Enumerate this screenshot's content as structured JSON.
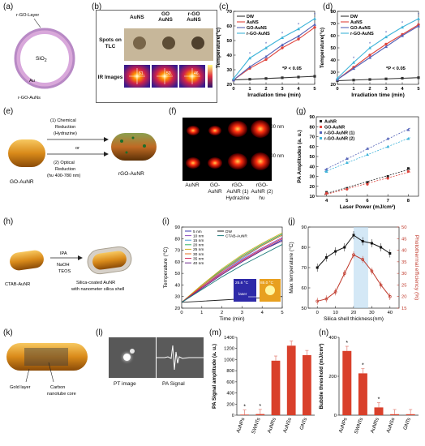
{
  "panel_labels": [
    "(a)",
    "(b)",
    "(c)",
    "(d)",
    "(e)",
    "(f)",
    "(g)",
    "(h)",
    "(i)",
    "(j)",
    "(k)",
    "(l)",
    "(m)",
    "(n)"
  ],
  "panel_a": {
    "top_label": "r-GO-Layer",
    "core": "SiO",
    "core_sub": "2",
    "metal": "Au",
    "bottom_label": "r-GO-AuNs"
  },
  "panel_b": {
    "cols": [
      "AuNS",
      "GO AuNS",
      "r-GO AuNS"
    ],
    "row1": "Spots on TLC",
    "row2": "IR Images",
    "scale_values": [
      "61.",
      "50.",
      "46."
    ]
  },
  "panel_c": {
    "colors": {
      "DW": "#333333",
      "AuNS": "#e0443c",
      "GO-AuNS": "#5563b8",
      "r-GO-AuNS": "#3fb4d9"
    },
    "note": "*P < 0.05"
  },
  "panel_e": {
    "left_label": "GO-AuNR",
    "right_label": "rGO-AuNR",
    "or": "or",
    "route1": [
      "(1) Chemical",
      "Reduction",
      "(Hydrazine)"
    ],
    "route2": [
      "(2) Optical",
      "Reduction",
      "(hυ 400-780 nm)"
    ]
  },
  "panel_f": {
    "rows": [
      "700 nm",
      "800 nm"
    ],
    "cols": [
      [
        "AuNR"
      ],
      [
        "GO-",
        "AuNR"
      ],
      [
        "rGO-",
        "AuNR (1)",
        "Hydrazine"
      ],
      [
        "rGO-",
        "AuNR (2)",
        "hυ"
      ]
    ]
  },
  "panel_h": {
    "left": "CTAB-AuNR",
    "reagents": [
      "IPA",
      "NaOH",
      "TEOS"
    ],
    "right": [
      "Silica-coated AuNR",
      "with nanometer silica shell"
    ]
  },
  "panel_i_inset": {
    "t1": "25.6 °C",
    "t2": "85.0 °C",
    "laser": "laser"
  },
  "panel_k": {
    "labels": [
      "Gold layer",
      "Carbon",
      "nanotube core"
    ]
  },
  "panel_l": {
    "labels": [
      "PT image",
      "PA Signal"
    ]
  },
  "chart_data": [
    {
      "panel": "c",
      "type": "line",
      "xlabel": "Irradiation time (min)",
      "ylabel": "Temperature(°c)",
      "xlim": [
        0,
        5
      ],
      "ylim": [
        20,
        70
      ],
      "xticks": [
        0,
        1,
        2,
        3,
        4,
        5
      ],
      "yticks": [
        20,
        30,
        40,
        50,
        60,
        70
      ],
      "x": [
        0,
        1,
        2,
        3,
        4,
        5
      ],
      "series": [
        {
          "name": "DW",
          "values": [
            23,
            23.5,
            24,
            24.5,
            25,
            25.5
          ]
        },
        {
          "name": "AuNS",
          "values": [
            23,
            31,
            37,
            45,
            51,
            59
          ]
        },
        {
          "name": "GO-AuNS",
          "values": [
            23,
            32,
            39,
            47,
            53,
            61
          ]
        },
        {
          "name": "r-GO-AuNS",
          "values": [
            24,
            38,
            45,
            52,
            58,
            65
          ]
        }
      ],
      "annotation": "*P < 0.05"
    },
    {
      "panel": "d",
      "type": "line",
      "xlabel": "Irradiation time (min)",
      "ylabel": "Temperature(°c)",
      "xlim": [
        0,
        5
      ],
      "ylim": [
        20,
        80
      ],
      "xticks": [
        0,
        1,
        2,
        3,
        4,
        5
      ],
      "yticks": [
        20,
        30,
        40,
        50,
        60,
        70,
        80
      ],
      "x": [
        0,
        1,
        2,
        3,
        4,
        5
      ],
      "series": [
        {
          "name": "DW",
          "values": [
            23,
            23.5,
            24,
            24.5,
            25,
            25.5
          ]
        },
        {
          "name": "AuNS",
          "values": [
            24,
            34,
            44,
            53,
            61,
            69
          ]
        },
        {
          "name": "GO-AuNS",
          "values": [
            24,
            33,
            42,
            51,
            60,
            68
          ]
        },
        {
          "name": "r-GO-AuNS",
          "values": [
            25,
            38,
            50,
            59,
            67,
            74
          ]
        }
      ],
      "annotation": "*P < 0.05"
    },
    {
      "panel": "g",
      "type": "scatter",
      "xlabel": "Laser Power (mJ/cm²)",
      "ylabel": "PA Amplitudes (a. u.)",
      "xlim": [
        3.5,
        8.5
      ],
      "ylim": [
        10,
        90
      ],
      "xticks": [
        4,
        5,
        6,
        7,
        8
      ],
      "yticks": [
        10,
        20,
        30,
        40,
        50,
        60,
        70,
        80,
        90
      ],
      "x": [
        4,
        5,
        6,
        7,
        8
      ],
      "series": [
        {
          "name": "AuNR",
          "values": [
            14,
            18,
            24,
            30,
            38
          ]
        },
        {
          "name": "GO-AuNR",
          "values": [
            13,
            17,
            22,
            28,
            35
          ]
        },
        {
          "name": "r-GO-AuNR (1)",
          "values": [
            37,
            48,
            58,
            68,
            77
          ]
        },
        {
          "name": "r-GO-AuNR (2)",
          "values": [
            35,
            44,
            52,
            60,
            68
          ]
        }
      ]
    },
    {
      "panel": "i",
      "type": "line",
      "xlabel": "Time (min)",
      "ylabel": "Temperature (°C)",
      "xlim": [
        0,
        5
      ],
      "ylim": [
        20,
        90
      ],
      "xticks": [
        0,
        1,
        2,
        3,
        4,
        5
      ],
      "yticks": [
        20,
        30,
        40,
        50,
        60,
        70,
        80,
        90
      ],
      "x": [
        0,
        1,
        2,
        3,
        4,
        5
      ],
      "series": [
        {
          "name": "5 nm",
          "values": [
            25,
            37,
            49,
            60,
            70,
            79
          ]
        },
        {
          "name": "10 nm",
          "values": [
            25,
            38,
            51,
            62,
            72,
            81
          ]
        },
        {
          "name": "15 nm",
          "values": [
            25,
            39,
            52,
            63,
            74,
            83
          ]
        },
        {
          "name": "20 nm",
          "values": [
            25,
            40,
            53,
            65,
            75,
            84
          ]
        },
        {
          "name": "25 nm",
          "values": [
            25,
            40,
            54,
            66,
            76,
            85
          ]
        },
        {
          "name": "30 nm",
          "values": [
            25,
            39,
            52,
            64,
            74,
            83
          ]
        },
        {
          "name": "35 nm",
          "values": [
            25,
            38,
            50,
            61,
            71,
            80
          ]
        },
        {
          "name": "40 nm",
          "values": [
            25,
            37,
            49,
            60,
            70,
            78
          ]
        },
        {
          "name": "DW",
          "values": [
            25,
            26,
            27,
            28,
            29,
            30
          ]
        },
        {
          "name": "CTAB-AuNR",
          "values": [
            25,
            36,
            47,
            57,
            66,
            75
          ]
        }
      ]
    },
    {
      "panel": "j",
      "type": "scatter",
      "xlabel": "Silica shell thickness(nm)",
      "ylabel": "Max temperature (°C)",
      "y2label": "Photothermal efficiency (%)",
      "xlim": [
        -5,
        45
      ],
      "ylim": [
        50,
        90
      ],
      "y2lim": [
        15,
        50
      ],
      "xticks": [
        0,
        10,
        20,
        30,
        40
      ],
      "yticks": [
        50,
        60,
        70,
        80,
        90
      ],
      "y2ticks": [
        15,
        20,
        25,
        30,
        35,
        40,
        45,
        50
      ],
      "x": [
        0,
        5,
        10,
        15,
        20,
        25,
        30,
        35,
        40
      ],
      "series": [
        {
          "name": "Max temperature",
          "values": [
            70,
            75,
            78,
            80,
            86,
            83,
            82,
            80,
            77
          ]
        },
        {
          "name": "Photothermal efficiency",
          "values": [
            18,
            19,
            22,
            30,
            38,
            36,
            31,
            25,
            20
          ]
        }
      ]
    },
    {
      "panel": "m",
      "type": "bar",
      "ylabel": "PA Signal amplitude (a. u.)",
      "categories": [
        "AuNPs",
        "SWNTs",
        "AuNRs",
        "AuNSs",
        "GNTs"
      ],
      "values": [
        10,
        20,
        980,
        1250,
        1080
      ],
      "ylim": [
        0,
        1400
      ],
      "yticks": [
        0,
        200,
        400,
        600,
        800,
        1000,
        1200,
        1400
      ],
      "annotations": [
        "*",
        "*",
        "",
        "",
        ""
      ]
    },
    {
      "panel": "n",
      "type": "bar",
      "ylabel": "Bubble threshold (mJ/cm²)",
      "categories": [
        "AuNPs",
        "SWNTs",
        "AuNRs",
        "AuNSs",
        "GNTs"
      ],
      "values": [
        330,
        215,
        40,
        5,
        5
      ],
      "ylim": [
        0,
        400
      ],
      "yticks": [
        0,
        200,
        400
      ],
      "annotations": [
        "*",
        "*",
        "*",
        "",
        ""
      ]
    }
  ]
}
